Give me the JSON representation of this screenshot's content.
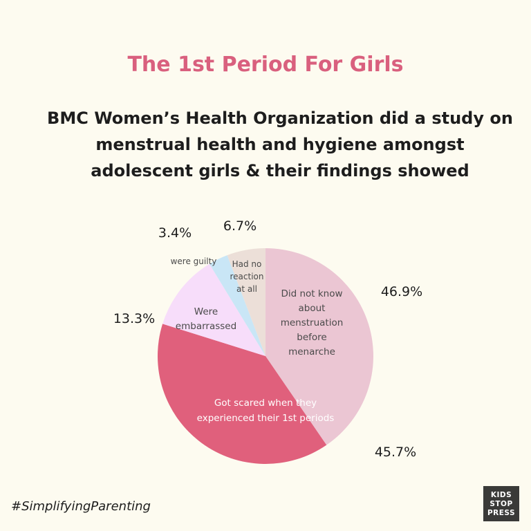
{
  "header": {
    "title": "The 1st Period For Girls",
    "subtitle_lines": [
      "BMC Women’s Health Organization did a study on",
      "menstrual health and hygiene amongst",
      "adolescent girls & their findings showed"
    ]
  },
  "chart_data": {
    "type": "pie",
    "title": "The 1st Period For Girls",
    "slices": [
      {
        "value": 46.9,
        "percent_label": "46.9%",
        "label_lines": [
          "Did not know",
          "about",
          "menstruation",
          "before",
          "menarche"
        ],
        "color": "#ebc6d3"
      },
      {
        "value": 45.7,
        "percent_label": "45.7%",
        "label_lines": [
          "Got scared when they",
          "experienced their 1st periods"
        ],
        "color": "#e0607c"
      },
      {
        "value": 13.3,
        "percent_label": "13.3%",
        "label_lines": [
          "Were",
          "embarrassed"
        ],
        "color": "#f7ddfa"
      },
      {
        "value": 3.4,
        "percent_label": "3.4%",
        "label_lines": [
          "were guilty"
        ],
        "color": "#c9e6f6"
      },
      {
        "value": 6.7,
        "percent_label": "6.7%",
        "label_lines": [
          "Had no",
          "reaction",
          "at all"
        ],
        "color": "#ecdfd8"
      }
    ]
  },
  "footer": {
    "hashtag": "#SimplifyingParenting",
    "logo_lines": [
      "KIDS",
      "STOP",
      "PRESS"
    ]
  }
}
